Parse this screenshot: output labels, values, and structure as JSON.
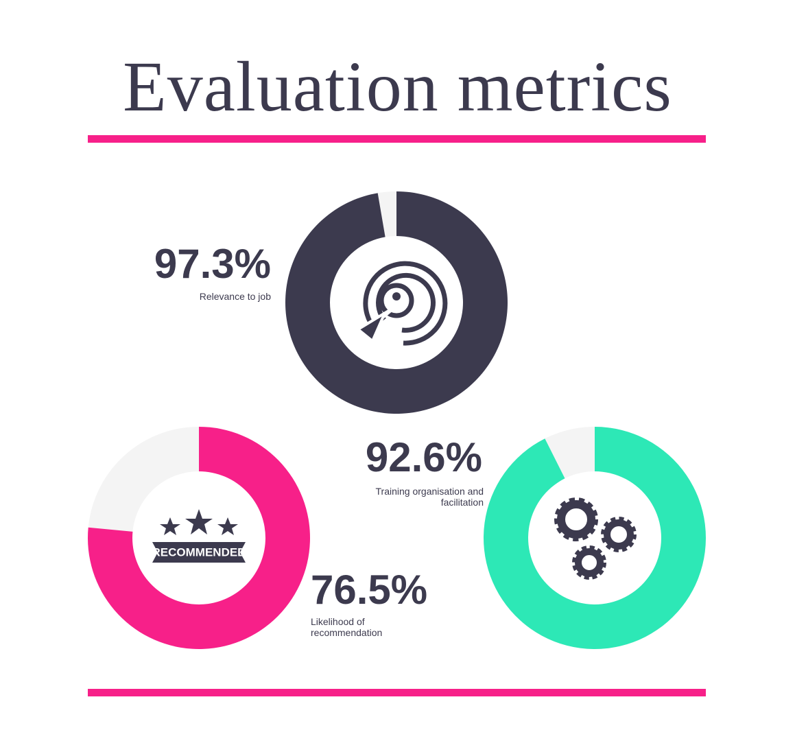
{
  "title": "Evaluation metrics",
  "chart_data": [
    {
      "type": "donut",
      "categories": [
        "Relevance to job"
      ],
      "values": [
        97.3
      ],
      "value_labels": [
        "97.3%"
      ],
      "color": "#3c3a4e",
      "track_color": "#f4f4f4"
    },
    {
      "type": "donut",
      "categories": [
        "Likelihood of recommendation"
      ],
      "values": [
        76.5
      ],
      "value_labels": [
        "76.5%"
      ],
      "color": "#f72089",
      "track_color": "#f4f4f4",
      "icon_text": "RECOMMENDED"
    },
    {
      "type": "donut",
      "categories": [
        "Training organisation and facilitation"
      ],
      "values": [
        92.6
      ],
      "value_labels": [
        "92.6%"
      ],
      "color": "#2de8b6",
      "track_color": "#f4f4f4"
    }
  ]
}
